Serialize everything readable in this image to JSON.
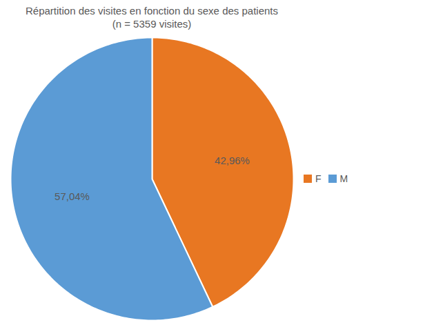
{
  "chart_data": {
    "type": "pie",
    "title": "Répartition des visites en fonction du sexe des patients",
    "subtitle": "(n = 5359 visites)",
    "categories": [
      "F",
      "M"
    ],
    "values": [
      42.96,
      57.04
    ],
    "value_labels": [
      "42,96%",
      "57,04%"
    ],
    "colors": [
      "#E87722",
      "#5B9BD5"
    ],
    "data_labels": true,
    "legend": "right"
  }
}
